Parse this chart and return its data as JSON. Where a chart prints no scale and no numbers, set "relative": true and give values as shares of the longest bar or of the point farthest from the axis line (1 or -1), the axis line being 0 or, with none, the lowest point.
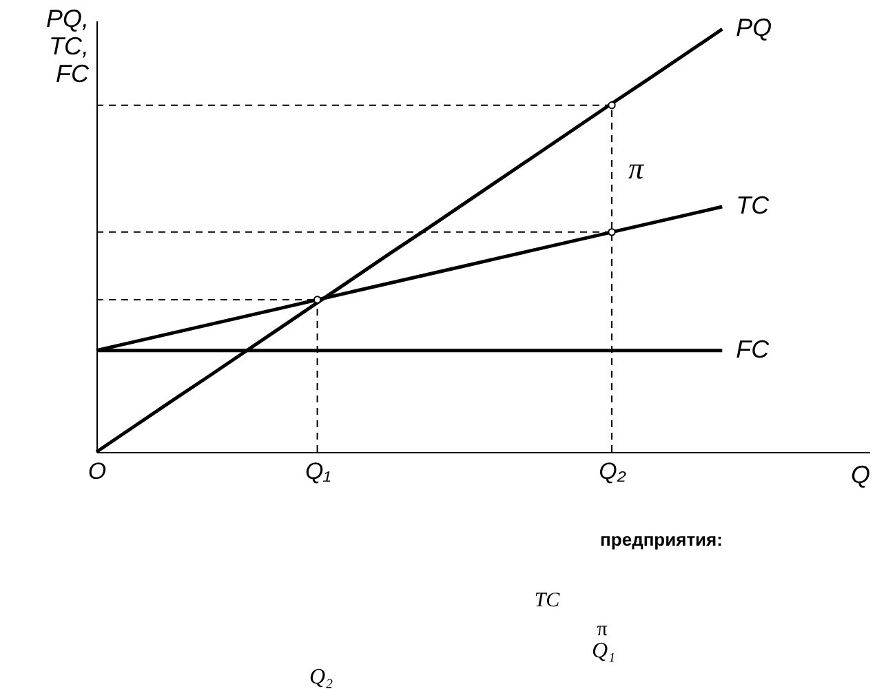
{
  "chart_data": {
    "type": "line",
    "relative": true,
    "ylabel": "PQ, TC, FC",
    "xlabel": "Q",
    "categories": [
      "O",
      null,
      null,
      null,
      null,
      null,
      "Q₁",
      null,
      null,
      null,
      null,
      null,
      null,
      null,
      "Q₂",
      null,
      null,
      null,
      null,
      null,
      null,
      null
    ],
    "series": [
      {
        "name": "PQ",
        "color": "#000000",
        "values": [
          0,
          0.059,
          0.118,
          0.176,
          0.235,
          0.294,
          0.353,
          0.412,
          0.471,
          0.529,
          0.588,
          0.647,
          0.706,
          0.765,
          0.824,
          0.882,
          0.941,
          1.0,
          null,
          null,
          null,
          null
        ]
      },
      {
        "name": "TC",
        "color": "#000000",
        "values": [
          0.24,
          0.26,
          0.28,
          0.3,
          0.32,
          0.34,
          0.36,
          0.38,
          0.4,
          0.42,
          0.44,
          0.46,
          0.48,
          0.5,
          0.52,
          0.54,
          0.56,
          0.58,
          null,
          null,
          null,
          null
        ]
      },
      {
        "name": "FC",
        "color": "#000000",
        "values": [
          0.24,
          0.24,
          0.24,
          0.24,
          0.24,
          0.24,
          0.24,
          0.24,
          0.24,
          0.24,
          0.24,
          0.24,
          0.24,
          0.24,
          0.24,
          0.24,
          0.24,
          0.24,
          null,
          null,
          null,
          null
        ]
      },
      {
        "type": "line",
        "line_style": "dashed",
        "color": "#000000",
        "values": [
          0.36,
          0.36,
          0.36,
          0.36,
          0.36,
          0.36,
          0.36,
          null,
          null,
          null,
          null,
          null,
          null,
          null,
          null,
          null,
          null,
          null,
          null,
          null,
          null,
          null
        ]
      },
      {
        "type": "line",
        "line_style": "dashed",
        "color": "#000000",
        "values": [
          0.82,
          0.82,
          0.82,
          0.82,
          0.82,
          0.82,
          0.82,
          0.82,
          0.82,
          0.82,
          0.82,
          0.82,
          0.82,
          0.82,
          0.82,
          null,
          null,
          null,
          null,
          null,
          null,
          null
        ]
      },
      {
        "type": "line",
        "line_style": "dashed",
        "color": "#000000",
        "values": [
          0.52,
          0.52,
          0.52,
          0.52,
          0.52,
          0.52,
          0.52,
          0.52,
          0.52,
          0.52,
          0.52,
          0.52,
          0.52,
          0.52,
          0.52,
          null,
          null,
          null,
          null,
          null,
          null,
          null
        ]
      },
      {
        "type": "line",
        "line_style": "dashed",
        "color": "#000000",
        "x": [
          "Q₁",
          "Q₁"
        ],
        "values": [
          0,
          0.36
        ]
      },
      {
        "type": "line",
        "line_style": "dashed",
        "color": "#000000",
        "x": [
          "Q₂",
          "Q₂"
        ],
        "values": [
          0,
          0.82
        ]
      },
      {
        "type": "scatter",
        "marker": "circle",
        "color": "#000000",
        "x": [
          "Q₁",
          "Q₂",
          "Q₂"
        ],
        "values": [
          0.36,
          0.82,
          0.52
        ]
      }
    ],
    "annotations": [
      {
        "text": "π",
        "x": "Q₂",
        "y": 0.67
      },
      "предприятия:",
      "TC",
      "π",
      "Q₁",
      "Q₂"
    ],
    "grid": false,
    "tick_labels": "x"
  }
}
